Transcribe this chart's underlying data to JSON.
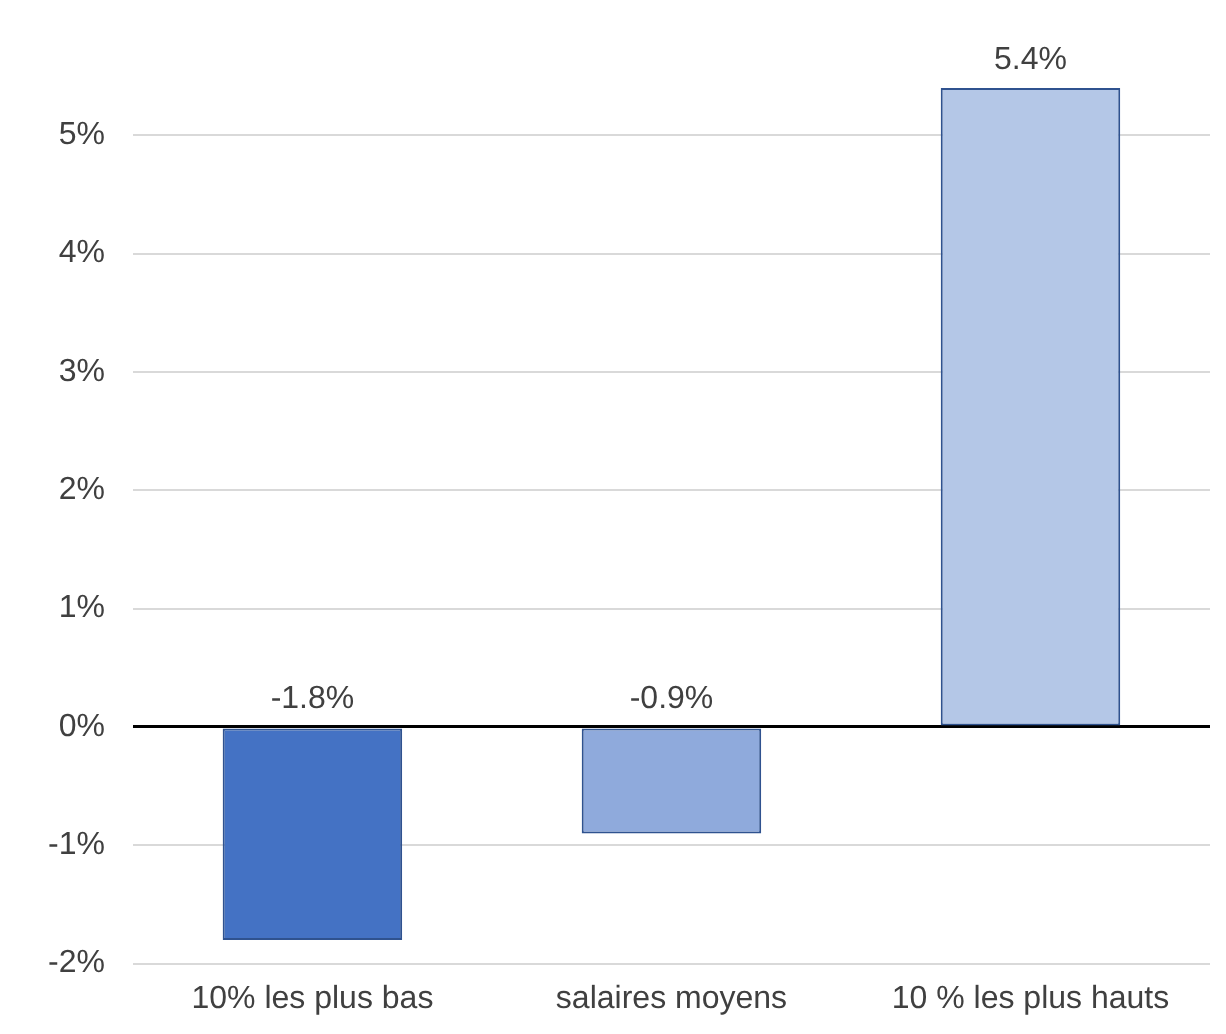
{
  "chart_data": {
    "type": "bar",
    "categories": [
      "10% les plus bas",
      "salaires moyens",
      "10 % les plus hauts"
    ],
    "values": [
      -1.8,
      -0.9,
      5.4
    ],
    "colors": [
      "#4472c4",
      "#8faadc",
      "#b4c7e7"
    ],
    "value_labels": [
      "-1.8%",
      "-0.9%",
      "5.4%"
    ],
    "ylim": [
      -2,
      5.4
    ],
    "yticks": [
      {
        "value": -2,
        "label": "-2%"
      },
      {
        "value": -1,
        "label": "-1%"
      },
      {
        "value": 0,
        "label": "0%"
      },
      {
        "value": 1,
        "label": "1%"
      },
      {
        "value": 2,
        "label": "2%"
      },
      {
        "value": 3,
        "label": "3%"
      },
      {
        "value": 4,
        "label": "4%"
      },
      {
        "value": 5,
        "label": "5%"
      }
    ],
    "grid": "y",
    "legend": false
  }
}
